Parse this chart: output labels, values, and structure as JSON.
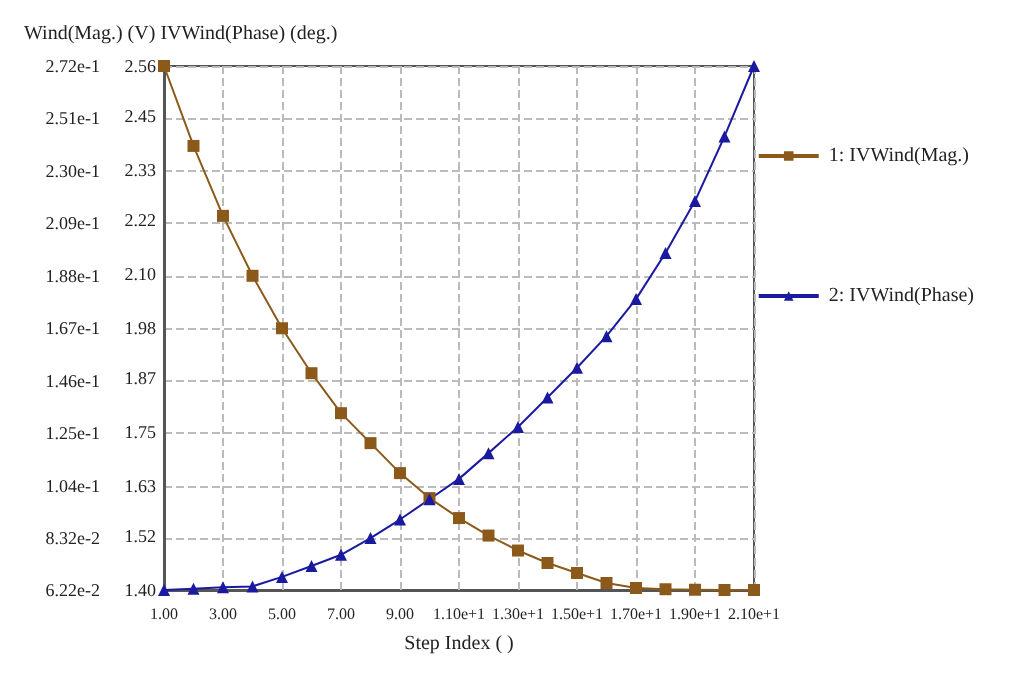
{
  "chart_data": {
    "type": "line",
    "xlabel": "Step Index ( )",
    "ylabel": "Wind(Mag.) (V)",
    "y2label": "IVWind(Phase) (deg.)",
    "x": [
      1,
      2,
      3,
      4,
      5,
      6,
      7,
      8,
      9,
      10,
      11,
      12,
      13,
      14,
      15,
      16,
      17,
      18,
      19,
      20,
      21
    ],
    "series": [
      {
        "name": "1: IVWind(Mag.)",
        "color": "#8b5a1a",
        "marker": "square",
        "values": [
          0.272,
          0.24,
          0.212,
          0.188,
          0.167,
          0.149,
          0.133,
          0.121,
          0.109,
          0.099,
          0.091,
          0.084,
          0.078,
          0.073,
          0.069,
          0.065,
          0.063,
          0.0625,
          0.0623,
          0.0622,
          0.0622
        ]
      },
      {
        "name": "2: IVWind(Phase)",
        "color": "#1a1aa0",
        "marker": "triangle",
        "axis": "y2",
        "values": [
          1.4,
          1.403,
          1.406,
          1.408,
          1.429,
          1.453,
          1.478,
          1.515,
          1.556,
          1.601,
          1.646,
          1.703,
          1.761,
          1.826,
          1.892,
          1.962,
          2.044,
          2.146,
          2.261,
          2.404,
          2.56
        ]
      }
    ],
    "xlim": [
      1,
      21
    ],
    "xticks": [
      {
        "value": 1,
        "label": "1.00"
      },
      {
        "value": 3,
        "label": "3.00"
      },
      {
        "value": 5,
        "label": "5.00"
      },
      {
        "value": 7,
        "label": "7.00"
      },
      {
        "value": 9,
        "label": "9.00"
      },
      {
        "value": 11,
        "label": "1.10e+1"
      },
      {
        "value": 13,
        "label": "1.30e+1"
      },
      {
        "value": 15,
        "label": "1.50e+1"
      },
      {
        "value": 17,
        "label": "1.70e+1"
      },
      {
        "value": 19,
        "label": "1.90e+1"
      },
      {
        "value": 21,
        "label": "2.10e+1"
      }
    ],
    "ylim": [
      0.0622,
      0.272
    ],
    "yticks": [
      {
        "value": 0.0622,
        "label": "6.22e-2"
      },
      {
        "value": 0.0832,
        "label": "8.32e-2"
      },
      {
        "value": 0.104,
        "label": "1.04e-1"
      },
      {
        "value": 0.125,
        "label": "1.25e-1"
      },
      {
        "value": 0.146,
        "label": "1.46e-1"
      },
      {
        "value": 0.167,
        "label": "1.67e-1"
      },
      {
        "value": 0.188,
        "label": "1.88e-1"
      },
      {
        "value": 0.209,
        "label": "2.09e-1"
      },
      {
        "value": 0.23,
        "label": "2.30e-1"
      },
      {
        "value": 0.251,
        "label": "2.51e-1"
      },
      {
        "value": 0.272,
        "label": "2.72e-1"
      }
    ],
    "y2lim": [
      1.4,
      2.56
    ],
    "y2ticks": [
      {
        "value": 1.4,
        "label": "1.40"
      },
      1.52,
      1.63,
      1.75,
      1.87,
      1.98,
      {
        "value": 2.1,
        "label": "2.10"
      },
      2.22,
      2.33,
      2.45,
      2.56
    ],
    "grid": true,
    "legend": "right",
    "line_style": "solid"
  }
}
